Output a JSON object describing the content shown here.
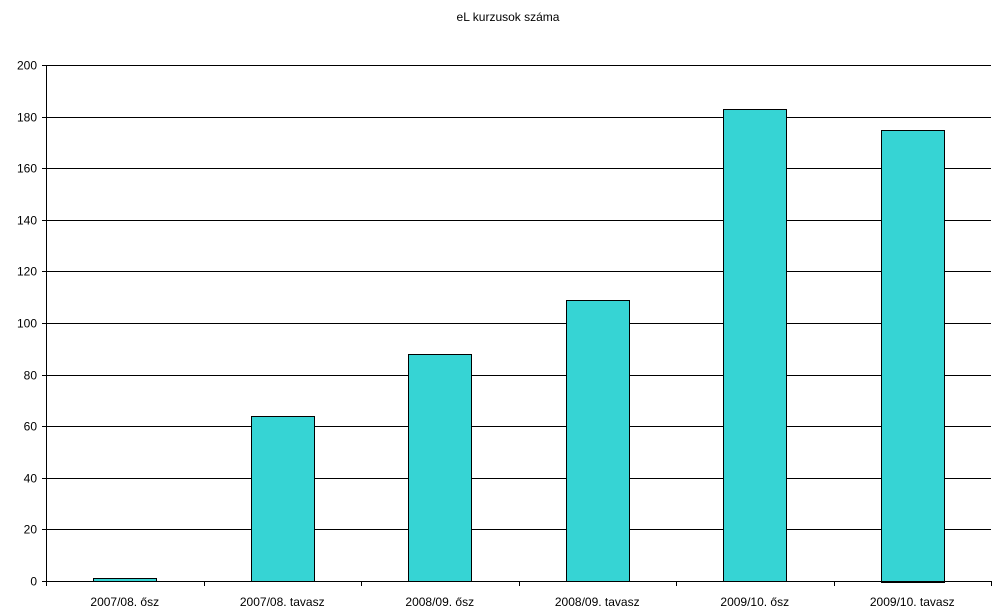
{
  "chart_data": {
    "type": "bar",
    "title": "eL kurzusok száma",
    "categories": [
      "2007/08. ősz",
      "2007/08. tavasz",
      "2008/09. ősz",
      "2008/09. tavasz",
      "2009/10. ősz",
      "2009/10. tavasz"
    ],
    "values": [
      1,
      64,
      88,
      109,
      183,
      175
    ],
    "ylim": [
      0,
      200
    ],
    "yticks": [
      0,
      20,
      40,
      60,
      80,
      100,
      120,
      140,
      160,
      180,
      200
    ],
    "xlabel": "",
    "ylabel": "",
    "grid": true,
    "legend": "none",
    "bar_color": "#36d4d4",
    "border_color": "#000000"
  }
}
